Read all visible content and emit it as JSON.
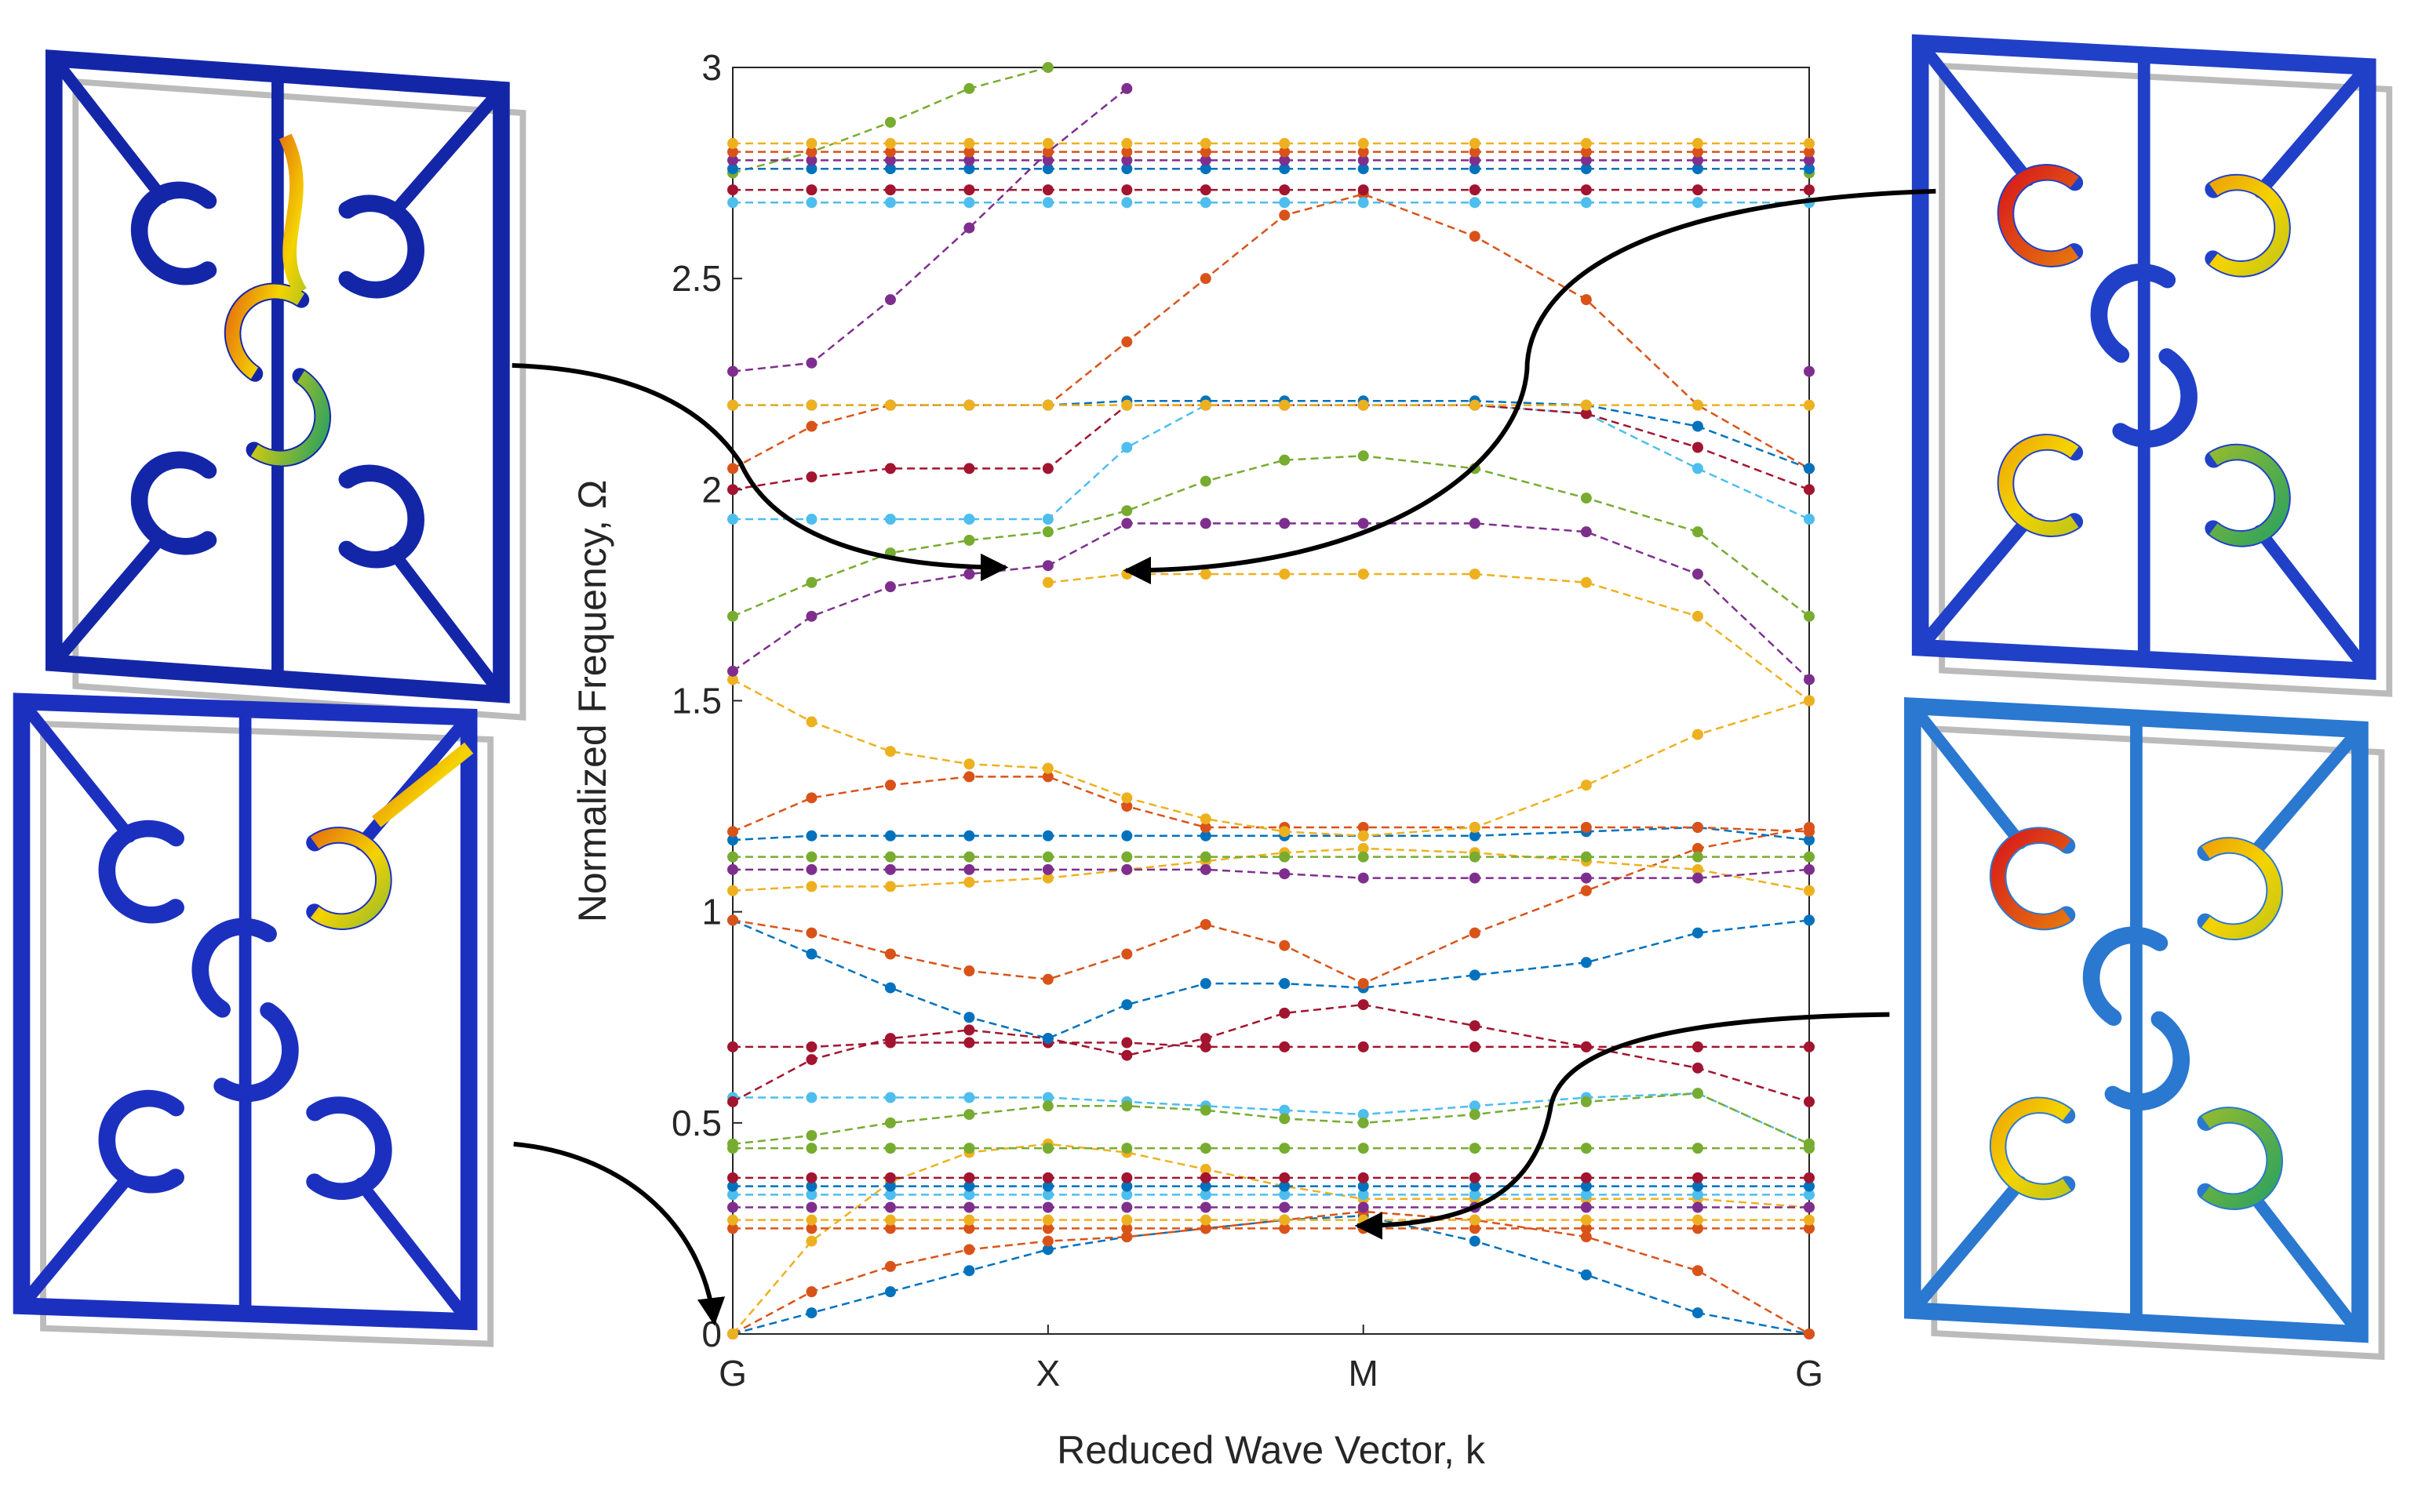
{
  "chart_data": {
    "type": "line",
    "xlabel": "Reduced Wave Vector, k",
    "ylabel": "Normalized Frequency, Ω",
    "x": [
      0,
      0.25,
      0.5,
      0.75,
      1,
      1.25,
      1.5,
      1.75,
      2,
      2.3536,
      2.7071,
      3.0607,
      3.4142
    ],
    "xlim": [
      0,
      3.4142
    ],
    "xticks": [
      {
        "value": 0,
        "label": "G"
      },
      {
        "value": 1,
        "label": "X"
      },
      {
        "value": 2,
        "label": "M"
      },
      {
        "value": 3.4142,
        "label": "G"
      }
    ],
    "ylim": [
      0,
      3
    ],
    "yticks": [
      0,
      0.5,
      1,
      1.5,
      2,
      2.5,
      3
    ],
    "series": [
      {
        "color": "#0072bd",
        "values": [
          0,
          0.05,
          0.1,
          0.15,
          0.2,
          0.23,
          0.25,
          0.27,
          0.28,
          0.22,
          0.14,
          0.05,
          0
        ]
      },
      {
        "color": "#d95319",
        "values": [
          0,
          0.1,
          0.16,
          0.2,
          0.22,
          0.23,
          0.25,
          0.27,
          0.29,
          0.27,
          0.23,
          0.15,
          0
        ]
      },
      {
        "color": "#edb120",
        "values": [
          0,
          0.22,
          0.36,
          0.43,
          0.45,
          0.43,
          0.39,
          0.35,
          0.32,
          0.32,
          0.32,
          0.32,
          0.3
        ]
      },
      {
        "color": "#d95319",
        "values": [
          0.25,
          0.25,
          0.25,
          0.25,
          0.25,
          0.25,
          0.25,
          0.25,
          0.25,
          0.25,
          0.25,
          0.25,
          0.25
        ]
      },
      {
        "color": "#edb120",
        "values": [
          0.27,
          0.27,
          0.27,
          0.27,
          0.27,
          0.27,
          0.27,
          0.27,
          0.27,
          0.27,
          0.27,
          0.27,
          0.27
        ]
      },
      {
        "color": "#7e2f8e",
        "values": [
          0.3,
          0.3,
          0.3,
          0.3,
          0.3,
          0.3,
          0.3,
          0.3,
          0.3,
          0.3,
          0.3,
          0.3,
          0.3
        ]
      },
      {
        "color": "#4dbeee",
        "values": [
          0.33,
          0.33,
          0.33,
          0.33,
          0.33,
          0.33,
          0.33,
          0.33,
          0.33,
          0.33,
          0.33,
          0.33,
          0.33
        ]
      },
      {
        "color": "#0072bd",
        "values": [
          0.35,
          0.35,
          0.35,
          0.35,
          0.35,
          0.35,
          0.35,
          0.35,
          0.35,
          0.35,
          0.35,
          0.35,
          0.35
        ]
      },
      {
        "color": "#a2142f",
        "values": [
          0.37,
          0.37,
          0.37,
          0.37,
          0.37,
          0.37,
          0.37,
          0.37,
          0.37,
          0.37,
          0.37,
          0.37,
          0.37
        ]
      },
      {
        "color": "#77ac30",
        "values": [
          0.44,
          0.44,
          0.44,
          0.44,
          0.44,
          0.44,
          0.44,
          0.44,
          0.44,
          0.44,
          0.44,
          0.44,
          0.44
        ]
      },
      {
        "color": "#4dbeee",
        "values": [
          0.56,
          0.56,
          0.56,
          0.56,
          0.56,
          0.55,
          0.54,
          0.53,
          0.52,
          0.54,
          0.56,
          0.57,
          0.45
        ]
      },
      {
        "color": "#77ac30",
        "values": [
          0.45,
          0.47,
          0.5,
          0.52,
          0.54,
          0.54,
          0.53,
          0.51,
          0.5,
          0.52,
          0.55,
          0.57,
          0.45
        ]
      },
      {
        "color": "#a2142f",
        "values": [
          0.68,
          0.68,
          0.69,
          0.69,
          0.69,
          0.69,
          0.68,
          0.68,
          0.68,
          0.68,
          0.68,
          0.68,
          0.68
        ]
      },
      {
        "color": "#a2142f",
        "values": [
          0.55,
          0.65,
          0.7,
          0.72,
          0.7,
          0.66,
          0.7,
          0.76,
          0.78,
          0.73,
          0.68,
          0.63,
          0.55
        ]
      },
      {
        "color": "#0072bd",
        "values": [
          0.98,
          0.9,
          0.82,
          0.75,
          0.7,
          0.78,
          0.83,
          0.83,
          0.82,
          0.85,
          0.88,
          0.95,
          0.98
        ]
      },
      {
        "color": "#d95319",
        "values": [
          0.98,
          0.95,
          0.9,
          0.86,
          0.84,
          0.9,
          0.97,
          0.92,
          0.83,
          0.95,
          1.05,
          1.15,
          1.2
        ]
      },
      {
        "color": "#edb120",
        "values": [
          1.05,
          1.06,
          1.06,
          1.07,
          1.08,
          1.1,
          1.12,
          1.14,
          1.15,
          1.14,
          1.12,
          1.1,
          1.05
        ]
      },
      {
        "color": "#7e2f8e",
        "values": [
          1.1,
          1.1,
          1.1,
          1.1,
          1.1,
          1.1,
          1.1,
          1.09,
          1.08,
          1.08,
          1.08,
          1.08,
          1.1
        ]
      },
      {
        "color": "#77ac30",
        "values": [
          1.13,
          1.13,
          1.13,
          1.13,
          1.13,
          1.13,
          1.13,
          1.13,
          1.13,
          1.13,
          1.13,
          1.13,
          1.13
        ]
      },
      {
        "color": "#0072bd",
        "values": [
          1.17,
          1.18,
          1.18,
          1.18,
          1.18,
          1.18,
          1.18,
          1.18,
          1.18,
          1.18,
          1.19,
          1.2,
          1.17
        ]
      },
      {
        "color": "#d95319",
        "values": [
          1.19,
          1.27,
          1.3,
          1.32,
          1.32,
          1.25,
          1.2,
          1.2,
          1.2,
          1.2,
          1.2,
          1.2,
          1.19
        ]
      },
      {
        "color": "#edb120",
        "values": [
          1.55,
          1.45,
          1.38,
          1.35,
          1.34,
          1.27,
          1.22,
          1.19,
          1.18,
          1.2,
          1.3,
          1.42,
          1.5
        ]
      },
      {
        "color": "#edb120",
        "values": [
          null,
          null,
          null,
          null,
          1.78,
          1.8,
          1.8,
          1.8,
          1.8,
          1.8,
          1.78,
          1.7,
          1.5
        ]
      },
      {
        "color": "#7e2f8e",
        "values": [
          1.57,
          1.7,
          1.77,
          1.8,
          1.82,
          1.92,
          1.92,
          1.92,
          1.92,
          1.92,
          1.9,
          1.8,
          1.55
        ]
      },
      {
        "color": "#77ac30",
        "values": [
          1.7,
          1.78,
          1.85,
          1.88,
          1.9,
          1.95,
          2.02,
          2.07,
          2.08,
          2.05,
          1.98,
          1.9,
          1.7
        ]
      },
      {
        "color": "#4dbeee",
        "values": [
          1.93,
          1.93,
          1.93,
          1.93,
          1.93,
          2.1,
          2.2,
          2.2,
          2.2,
          2.2,
          2.18,
          2.05,
          1.93
        ]
      },
      {
        "color": "#a2142f",
        "values": [
          2.0,
          2.03,
          2.05,
          2.05,
          2.05,
          2.2,
          2.2,
          2.2,
          2.2,
          2.2,
          2.18,
          2.1,
          2.0
        ]
      },
      {
        "color": "#d95319",
        "values": [
          2.05,
          2.15,
          2.2,
          2.2,
          2.2,
          2.35,
          2.5,
          2.65,
          2.7,
          2.6,
          2.45,
          2.2,
          2.05
        ]
      },
      {
        "color": "#0072bd",
        "values": [
          2.2,
          2.2,
          2.2,
          2.2,
          2.2,
          2.21,
          2.21,
          2.21,
          2.21,
          2.21,
          2.2,
          2.15,
          2.05
        ]
      },
      {
        "color": "#edb120",
        "values": [
          2.2,
          2.2,
          2.2,
          2.2,
          2.2,
          2.2,
          2.2,
          2.2,
          2.2,
          2.2,
          2.2,
          2.2,
          2.2
        ]
      },
      {
        "color": "#7e2f8e",
        "values": [
          2.28,
          2.3,
          2.45,
          2.62,
          2.8,
          2.95,
          null,
          null,
          null,
          null,
          null,
          null,
          2.28
        ]
      },
      {
        "color": "#77ac30",
        "values": [
          2.75,
          2.8,
          2.87,
          2.95,
          3.0,
          null,
          null,
          null,
          null,
          null,
          null,
          null,
          2.75
        ]
      },
      {
        "color": "#4dbeee",
        "values": [
          2.68,
          2.68,
          2.68,
          2.68,
          2.68,
          2.68,
          2.68,
          2.68,
          2.68,
          2.68,
          2.68,
          2.68,
          2.68
        ]
      },
      {
        "color": "#a2142f",
        "values": [
          2.71,
          2.71,
          2.71,
          2.71,
          2.71,
          2.71,
          2.71,
          2.71,
          2.71,
          2.71,
          2.71,
          2.71,
          2.71
        ]
      },
      {
        "color": "#0072bd",
        "values": [
          2.76,
          2.76,
          2.76,
          2.76,
          2.76,
          2.76,
          2.76,
          2.76,
          2.76,
          2.76,
          2.76,
          2.76,
          2.76
        ]
      },
      {
        "color": "#7e2f8e",
        "values": [
          2.78,
          2.78,
          2.78,
          2.78,
          2.78,
          2.78,
          2.78,
          2.78,
          2.78,
          2.78,
          2.78,
          2.78,
          2.78
        ]
      },
      {
        "color": "#d95319",
        "values": [
          2.8,
          2.8,
          2.8,
          2.8,
          2.8,
          2.8,
          2.8,
          2.8,
          2.8,
          2.8,
          2.8,
          2.8,
          2.8
        ]
      },
      {
        "color": "#edb120",
        "values": [
          2.82,
          2.82,
          2.82,
          2.82,
          2.82,
          2.82,
          2.82,
          2.82,
          2.82,
          2.82,
          2.82,
          2.82,
          2.82
        ]
      }
    ]
  }
}
